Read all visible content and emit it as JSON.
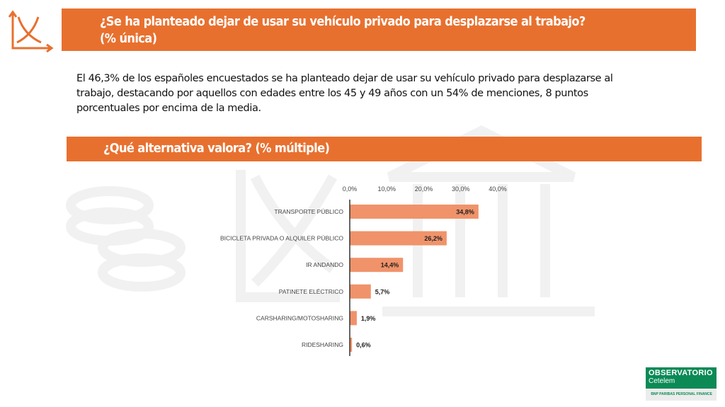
{
  "header": {
    "title_line1": "¿Se ha planteado dejar de usar su vehículo privado para desplazarse al trabajo?",
    "title_line2": "(% única)"
  },
  "description": "El 46,3% de los españoles encuestados se ha planteado dejar de usar su vehículo privado para desplazarse al trabajo, destacando por aquellos con edades entre los 45 y 49 años con un 54% de menciones, 8 puntos porcentuales por encima de la media.",
  "section": {
    "title": "¿Qué alternativa valora? (% múltiple)"
  },
  "brand": {
    "name": "OBSERVATORIO",
    "sub": "Cetelem",
    "partner": "BNP PARIBAS PERSONAL FINANCE",
    "color": "#0b8a56",
    "accent": "#e8702f"
  },
  "chart_data": {
    "type": "bar",
    "orientation": "horizontal",
    "categories": [
      "TRANSPORTE PÚBLICO",
      "BICICLETA PRIVADA O ALQUILER PÚBLICO",
      "IR ANDANDO",
      "PATINETE ELÉCTRICO",
      "CARSHARING/MOTOSHARING",
      "RIDESHARING"
    ],
    "values": [
      34.8,
      26.2,
      14.4,
      5.7,
      1.9,
      0.6
    ],
    "data_labels": [
      "34,8%",
      "26,2%",
      "14,4%",
      "5,7%",
      "1,9%",
      "0,6%"
    ],
    "xticks": [
      "0,0%",
      "10,0%",
      "20,0%",
      "30,0%",
      "40,0%"
    ],
    "xlim": [
      0,
      40
    ],
    "axis_position": "top",
    "grid": false,
    "bar_color": "#f0936a"
  }
}
